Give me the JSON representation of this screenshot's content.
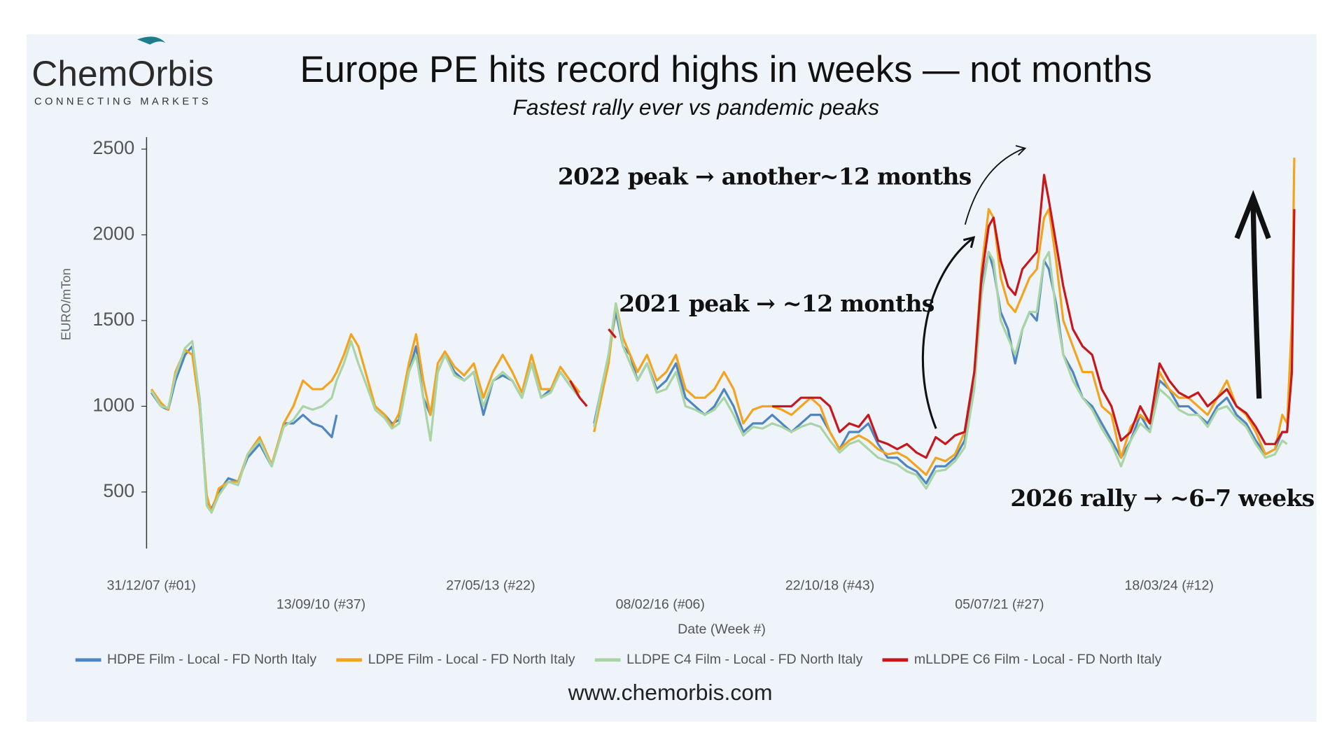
{
  "brand": {
    "name": "ChemOrbis",
    "tagline": "CONNECTING MARKETS"
  },
  "footer": "www.chemorbis.com",
  "chart_data": {
    "type": "line",
    "title": "Europe PE hits record highs in weeks — not months",
    "subtitle": "Fastest rally ever vs pandemic peaks",
    "x_label": "Date (Week #)",
    "y_label": "EURO/mTon",
    "annotations": [
      "2022 peak → another~12 months",
      "2021 peak → ~12 months",
      "2026 rally → ~6–7 weeks"
    ],
    "xlim": [
      -4,
      950
    ],
    "xticks": [
      {
        "value": 0,
        "label": "31/12/07 (#01)"
      },
      {
        "value": 141,
        "label": "13/09/10 (#37)"
      },
      {
        "value": 282,
        "label": "27/05/13 (#22)"
      },
      {
        "value": 423,
        "label": "08/02/16 (#06)"
      },
      {
        "value": 564,
        "label": "22/10/18 (#43)"
      },
      {
        "value": 705,
        "label": "05/07/21 (#27)"
      },
      {
        "value": 846,
        "label": "18/03/24 (#12)"
      }
    ],
    "ylim": [
      170,
      2570
    ],
    "yticks": [
      500,
      1000,
      1500,
      2000,
      2500
    ],
    "grid": false,
    "legend": "bottom",
    "x": [
      0,
      8,
      14,
      20,
      28,
      34,
      40,
      46,
      50,
      56,
      64,
      72,
      80,
      90,
      100,
      110,
      118,
      126,
      134,
      142,
      150,
      154,
      160,
      166,
      172,
      180,
      186,
      194,
      200,
      206,
      214,
      220,
      226,
      232,
      238,
      244,
      252,
      260,
      268,
      276,
      284,
      292,
      300,
      308,
      316,
      324,
      332,
      340,
      348,
      356,
      362,
      368,
      374,
      380,
      386,
      392,
      398,
      404,
      412,
      420,
      428,
      436,
      444,
      452,
      460,
      468,
      476,
      484,
      492,
      500,
      508,
      516,
      524,
      532,
      540,
      548,
      556,
      564,
      572,
      580,
      588,
      596,
      604,
      612,
      620,
      628,
      636,
      644,
      652,
      660,
      668,
      676,
      684,
      690,
      696,
      700,
      706,
      712,
      718,
      724,
      730,
      736,
      742,
      746,
      752,
      758,
      766,
      774,
      782,
      790,
      798,
      806,
      814,
      822,
      830,
      838,
      846,
      854,
      862,
      870,
      878,
      886,
      894,
      902,
      910,
      918,
      926,
      934,
      940,
      944,
      948,
      950
    ],
    "series": [
      {
        "name": "HDPE Film - Local - FD North Italy",
        "color": "#4f86c0",
        "values": [
          1080,
          1000,
          980,
          1150,
          1300,
          1350,
          1050,
          450,
          400,
          500,
          580,
          560,
          700,
          780,
          650,
          900,
          900,
          950,
          900,
          880,
          820,
          950,
          null,
          null,
          null,
          null,
          1000,
          950,
          900,
          920,
          1200,
          1350,
          1050,
          950,
          1200,
          1300,
          1200,
          1150,
          1200,
          950,
          1150,
          1180,
          1150,
          1050,
          1250,
          1050,
          1100,
          1200,
          1120,
          1050,
          null,
          900,
          1100,
          1300,
          1550,
          1350,
          1300,
          1150,
          1250,
          1100,
          1150,
          1250,
          1050,
          1000,
          950,
          1000,
          1100,
          1000,
          850,
          900,
          900,
          950,
          900,
          850,
          900,
          950,
          950,
          850,
          750,
          850,
          850,
          900,
          780,
          700,
          700,
          650,
          620,
          550,
          650,
          650,
          700,
          800,
          1150,
          1700,
          1900,
          1800,
          1550,
          1450,
          1250,
          1450,
          1550,
          1500,
          1850,
          1800,
          1600,
          1300,
          1200,
          1050,
          1000,
          900,
          800,
          700,
          800,
          950,
          850,
          1150,
          1100,
          1000,
          1000,
          950,
          900,
          1000,
          1050,
          950,
          900,
          800,
          720,
          750,
          850,
          850,
          1300,
          null
        ]
      },
      {
        "name": "LDPE Film - Local - FD North Italy",
        "color": "#f2a41e",
        "values": [
          1100,
          1020,
          980,
          1200,
          1330,
          1300,
          1000,
          480,
          380,
          520,
          560,
          560,
          720,
          820,
          660,
          900,
          1000,
          1150,
          1100,
          1100,
          1150,
          1200,
          1300,
          1420,
          1350,
          1150,
          1000,
          950,
          880,
          960,
          1250,
          1420,
          1150,
          950,
          1250,
          1320,
          1230,
          1180,
          1250,
          1050,
          1200,
          1300,
          1200,
          1080,
          1300,
          1100,
          1100,
          1230,
          1150,
          1080,
          null,
          850,
          1050,
          1250,
          1600,
          1400,
          1300,
          1200,
          1300,
          1150,
          1200,
          1300,
          1100,
          1050,
          1050,
          1100,
          1200,
          1100,
          900,
          980,
          1000,
          1000,
          980,
          950,
          1000,
          1050,
          1000,
          850,
          750,
          800,
          830,
          800,
          750,
          720,
          730,
          700,
          650,
          600,
          700,
          680,
          720,
          850,
          1200,
          1800,
          2150,
          2100,
          1750,
          1600,
          1550,
          1650,
          1750,
          1800,
          2100,
          2150,
          1850,
          1500,
          1350,
          1200,
          1200,
          1000,
          950,
          700,
          880,
          950,
          900,
          1200,
          1100,
          1050,
          1050,
          1000,
          950,
          1050,
          1150,
          1000,
          950,
          850,
          720,
          750,
          950,
          900,
          1500,
          2450
        ]
      },
      {
        "name": "LLDPE C4 Film - Local - FD North Italy",
        "color": "#a9d4a5",
        "values": [
          1090,
          1000,
          990,
          1180,
          1340,
          1380,
          1050,
          420,
          380,
          480,
          560,
          540,
          720,
          800,
          650,
          880,
          920,
          1000,
          980,
          1000,
          1050,
          1150,
          1250,
          1380,
          1250,
          1100,
          980,
          930,
          870,
          900,
          1200,
          1300,
          1050,
          800,
          1200,
          1300,
          1180,
          1150,
          1200,
          1000,
          1150,
          1200,
          1150,
          1050,
          1250,
          1050,
          1080,
          1200,
          1120,
          1050,
          null,
          880,
          1100,
          1300,
          1600,
          1350,
          1250,
          1150,
          1250,
          1080,
          1100,
          1200,
          1000,
          980,
          950,
          980,
          1050,
          950,
          830,
          880,
          870,
          900,
          880,
          850,
          880,
          900,
          880,
          800,
          730,
          780,
          800,
          750,
          700,
          680,
          660,
          620,
          600,
          520,
          620,
          630,
          680,
          760,
          1100,
          1650,
          1900,
          1850,
          1500,
          1400,
          1300,
          1450,
          1550,
          1550,
          1850,
          1900,
          1550,
          1300,
          1150,
          1050,
          980,
          870,
          780,
          650,
          800,
          900,
          850,
          1100,
          1050,
          980,
          950,
          950,
          880,
          980,
          1000,
          930,
          880,
          780,
          700,
          720,
          800,
          780,
          null,
          null
        ]
      },
      {
        "name": "mLLDPE C6 Film - Local - FD North Italy",
        "color": "#c8161d",
        "values": [
          null,
          null,
          null,
          null,
          null,
          null,
          null,
          null,
          null,
          null,
          null,
          null,
          null,
          null,
          null,
          null,
          null,
          null,
          null,
          null,
          null,
          null,
          null,
          null,
          null,
          null,
          null,
          null,
          null,
          null,
          null,
          null,
          null,
          null,
          null,
          null,
          null,
          null,
          null,
          null,
          null,
          null,
          null,
          null,
          null,
          null,
          null,
          null,
          1150,
          1050,
          1000,
          null,
          null,
          1450,
          1400,
          null,
          null,
          null,
          null,
          null,
          null,
          null,
          null,
          null,
          null,
          null,
          null,
          null,
          null,
          null,
          null,
          1000,
          1000,
          1000,
          1050,
          1050,
          1050,
          1000,
          850,
          900,
          880,
          950,
          800,
          780,
          750,
          780,
          730,
          700,
          820,
          780,
          830,
          850,
          1200,
          1750,
          2050,
          2100,
          1850,
          1700,
          1650,
          1800,
          1850,
          1900,
          2350,
          2200,
          1950,
          1700,
          1450,
          1350,
          1300,
          1100,
          1000,
          800,
          850,
          1000,
          900,
          1250,
          1150,
          1080,
          1050,
          1080,
          1000,
          1050,
          1100,
          1000,
          960,
          880,
          780,
          780,
          850,
          850,
          1200,
          2150
        ]
      }
    ]
  }
}
